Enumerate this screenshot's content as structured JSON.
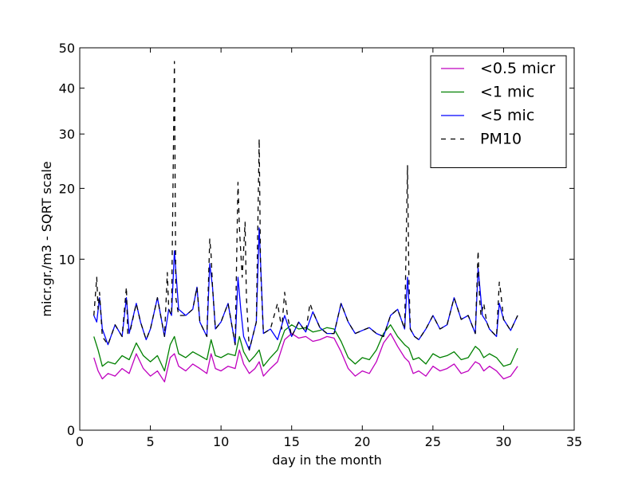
{
  "chart_data": {
    "type": "line",
    "title": "",
    "xlabel": "day in the month",
    "ylabel": "micr.gr./m3 - SQRT scale",
    "y_scale": "sqrt",
    "xlim": [
      0,
      35
    ],
    "ylim": [
      0,
      50
    ],
    "x_ticks": [
      0,
      5,
      10,
      15,
      20,
      25,
      30,
      35
    ],
    "y_ticks": [
      0,
      10,
      20,
      30,
      40,
      50
    ],
    "grid": false,
    "legend": {
      "position": "upper right"
    },
    "series": [
      {
        "name": "<0.5 micr",
        "color": "#bf00bf",
        "style": "solid",
        "x": [
          1.0,
          1.3,
          1.6,
          2.0,
          2.5,
          3.0,
          3.5,
          4.0,
          4.5,
          5.0,
          5.5,
          6.0,
          6.4,
          6.7,
          7.0,
          7.5,
          8.0,
          8.5,
          9.0,
          9.3,
          9.6,
          10.0,
          10.5,
          11.0,
          11.3,
          11.6,
          12.0,
          12.4,
          12.7,
          13.0,
          13.5,
          14.0,
          14.5,
          15.0,
          15.5,
          16.0,
          16.5,
          17.0,
          17.5,
          18.0,
          18.5,
          19.0,
          19.5,
          20.0,
          20.5,
          21.0,
          21.5,
          22.0,
          22.5,
          23.0,
          23.3,
          23.6,
          24.0,
          24.5,
          25.0,
          25.5,
          26.0,
          26.5,
          27.0,
          27.5,
          28.0,
          28.3,
          28.6,
          29.0,
          29.5,
          30.0,
          30.5,
          31.0
        ],
        "y": [
          1.8,
          1.2,
          0.9,
          1.1,
          1.0,
          1.3,
          1.1,
          2.0,
          1.3,
          1.0,
          1.2,
          0.8,
          1.8,
          2.0,
          1.4,
          1.2,
          1.5,
          1.3,
          1.1,
          2.0,
          1.3,
          1.2,
          1.4,
          1.3,
          2.2,
          1.5,
          1.1,
          1.3,
          1.6,
          1.0,
          1.3,
          1.6,
          2.8,
          3.2,
          2.9,
          3.0,
          2.7,
          2.8,
          3.0,
          2.9,
          2.1,
          1.3,
          1.0,
          1.2,
          1.1,
          1.6,
          2.6,
          3.2,
          2.4,
          1.8,
          1.6,
          1.1,
          1.2,
          1.0,
          1.4,
          1.2,
          1.3,
          1.5,
          1.1,
          1.2,
          1.6,
          1.5,
          1.2,
          1.4,
          1.2,
          0.9,
          1.0,
          1.4
        ]
      },
      {
        "name": "<1 mic",
        "color": "#008000",
        "style": "solid",
        "x": [
          1.0,
          1.3,
          1.6,
          2.0,
          2.5,
          3.0,
          3.5,
          4.0,
          4.5,
          5.0,
          5.5,
          6.0,
          6.4,
          6.7,
          7.0,
          7.5,
          8.0,
          8.5,
          9.0,
          9.3,
          9.6,
          10.0,
          10.5,
          11.0,
          11.3,
          11.6,
          12.0,
          12.4,
          12.7,
          13.0,
          13.5,
          14.0,
          14.5,
          15.0,
          15.5,
          16.0,
          16.5,
          17.0,
          17.5,
          18.0,
          18.5,
          19.0,
          19.5,
          20.0,
          20.5,
          21.0,
          21.5,
          22.0,
          22.5,
          23.0,
          23.3,
          23.6,
          24.0,
          24.5,
          25.0,
          25.5,
          26.0,
          26.5,
          27.0,
          27.5,
          28.0,
          28.3,
          28.6,
          29.0,
          29.5,
          30.0,
          30.5,
          31.0
        ],
        "y": [
          3.0,
          2.2,
          1.4,
          1.6,
          1.5,
          1.9,
          1.7,
          2.6,
          1.9,
          1.6,
          1.9,
          1.2,
          2.5,
          3.0,
          2.0,
          1.8,
          2.1,
          1.9,
          1.7,
          2.8,
          1.9,
          1.8,
          2.0,
          1.9,
          3.0,
          2.1,
          1.6,
          1.9,
          2.2,
          1.4,
          1.8,
          2.2,
          3.4,
          3.8,
          3.5,
          3.6,
          3.3,
          3.4,
          3.6,
          3.5,
          2.7,
          1.8,
          1.5,
          1.8,
          1.7,
          2.2,
          3.2,
          3.8,
          3.0,
          2.5,
          2.3,
          1.7,
          1.8,
          1.5,
          2.0,
          1.8,
          1.9,
          2.1,
          1.7,
          1.8,
          2.4,
          2.2,
          1.8,
          2.0,
          1.8,
          1.4,
          1.5,
          2.3
        ]
      },
      {
        "name": "<5 mic",
        "color": "#0000ff",
        "style": "solid",
        "x": [
          1.0,
          1.2,
          1.4,
          1.6,
          2.0,
          2.5,
          3.0,
          3.3,
          3.5,
          4.0,
          4.3,
          4.7,
          5.0,
          5.5,
          6.0,
          6.3,
          6.5,
          6.7,
          7.0,
          7.5,
          8.0,
          8.3,
          8.5,
          9.0,
          9.2,
          9.4,
          9.6,
          10.0,
          10.5,
          11.0,
          11.2,
          11.4,
          11.6,
          12.0,
          12.5,
          12.7,
          13.0,
          13.5,
          14.0,
          14.5,
          15.0,
          15.5,
          16.0,
          16.5,
          17.0,
          17.5,
          18.0,
          18.5,
          19.0,
          19.5,
          20.0,
          20.5,
          21.0,
          21.5,
          22.0,
          22.5,
          23.0,
          23.2,
          23.4,
          23.7,
          24.0,
          24.5,
          25.0,
          25.5,
          26.0,
          26.5,
          27.0,
          27.5,
          28.0,
          28.2,
          28.5,
          28.8,
          29.0,
          29.5,
          29.7,
          30.0,
          30.5,
          31.0
        ],
        "y": [
          4.5,
          4.0,
          6.0,
          3.5,
          2.5,
          3.8,
          3.0,
          6.0,
          3.2,
          5.5,
          4.0,
          2.8,
          3.5,
          6.0,
          3.0,
          5.0,
          4.5,
          11.0,
          5.0,
          4.5,
          5.0,
          7.0,
          4.0,
          3.0,
          9.5,
          7.0,
          3.5,
          4.0,
          5.5,
          2.5,
          8.0,
          5.0,
          3.0,
          2.2,
          4.0,
          14.0,
          3.2,
          3.5,
          2.8,
          4.5,
          3.0,
          4.0,
          3.3,
          4.8,
          3.6,
          3.2,
          3.2,
          5.5,
          4.0,
          3.2,
          3.4,
          3.6,
          3.2,
          3.0,
          4.5,
          5.0,
          3.5,
          8.0,
          3.5,
          3.0,
          2.8,
          3.5,
          4.5,
          3.5,
          3.8,
          6.0,
          4.2,
          4.5,
          3.2,
          9.0,
          4.5,
          4.0,
          3.5,
          3.0,
          5.5,
          4.2,
          3.4,
          4.5
        ]
      },
      {
        "name": "PM10",
        "color": "#000000",
        "style": "dashed",
        "x": [
          1.0,
          1.2,
          1.3,
          1.4,
          1.6,
          2.0,
          2.5,
          3.0,
          3.3,
          3.4,
          3.6,
          4.0,
          4.3,
          4.7,
          5.0,
          5.5,
          6.0,
          6.2,
          6.3,
          6.5,
          6.7,
          6.8,
          7.0,
          7.5,
          8.0,
          8.3,
          8.5,
          9.0,
          9.2,
          9.3,
          9.4,
          9.6,
          10.0,
          10.5,
          11.0,
          11.2,
          11.3,
          11.5,
          11.7,
          11.8,
          12.0,
          12.5,
          12.7,
          12.8,
          13.0,
          13.5,
          14.0,
          14.3,
          14.5,
          14.7,
          15.0,
          15.5,
          16.0,
          16.3,
          16.5,
          17.0,
          17.5,
          18.0,
          18.5,
          19.0,
          19.5,
          20.0,
          20.5,
          21.0,
          21.5,
          22.0,
          22.5,
          23.0,
          23.2,
          23.3,
          23.4,
          23.7,
          24.0,
          24.5,
          25.0,
          25.5,
          26.0,
          26.5,
          27.0,
          27.5,
          28.0,
          28.2,
          28.3,
          28.4,
          28.6,
          28.8,
          29.0,
          29.5,
          29.7,
          29.8,
          30.0,
          30.5,
          31.0
        ],
        "y": [
          4.5,
          8.0,
          5.0,
          6.5,
          3.0,
          2.5,
          3.8,
          3.0,
          7.0,
          3.2,
          3.5,
          5.5,
          4.0,
          2.8,
          3.5,
          6.0,
          3.0,
          8.5,
          5.0,
          4.5,
          46.5,
          6.0,
          4.5,
          4.5,
          5.0,
          7.0,
          4.0,
          3.0,
          12.5,
          10.5,
          7.0,
          3.5,
          4.0,
          5.5,
          2.5,
          21.0,
          14.0,
          8.0,
          14.8,
          6.0,
          2.2,
          4.0,
          29.0,
          9.0,
          3.2,
          3.5,
          5.5,
          3.5,
          6.5,
          4.5,
          3.0,
          4.0,
          3.3,
          5.5,
          4.8,
          3.6,
          3.2,
          3.2,
          5.5,
          4.0,
          3.2,
          3.4,
          3.6,
          3.2,
          3.0,
          4.5,
          5.0,
          3.5,
          24.0,
          8.0,
          3.5,
          3.0,
          2.8,
          3.5,
          4.5,
          3.5,
          3.8,
          6.0,
          4.2,
          4.5,
          3.2,
          11.0,
          6.0,
          4.5,
          5.5,
          4.0,
          3.5,
          3.0,
          7.5,
          6.5,
          4.2,
          3.4,
          4.5
        ]
      }
    ]
  }
}
